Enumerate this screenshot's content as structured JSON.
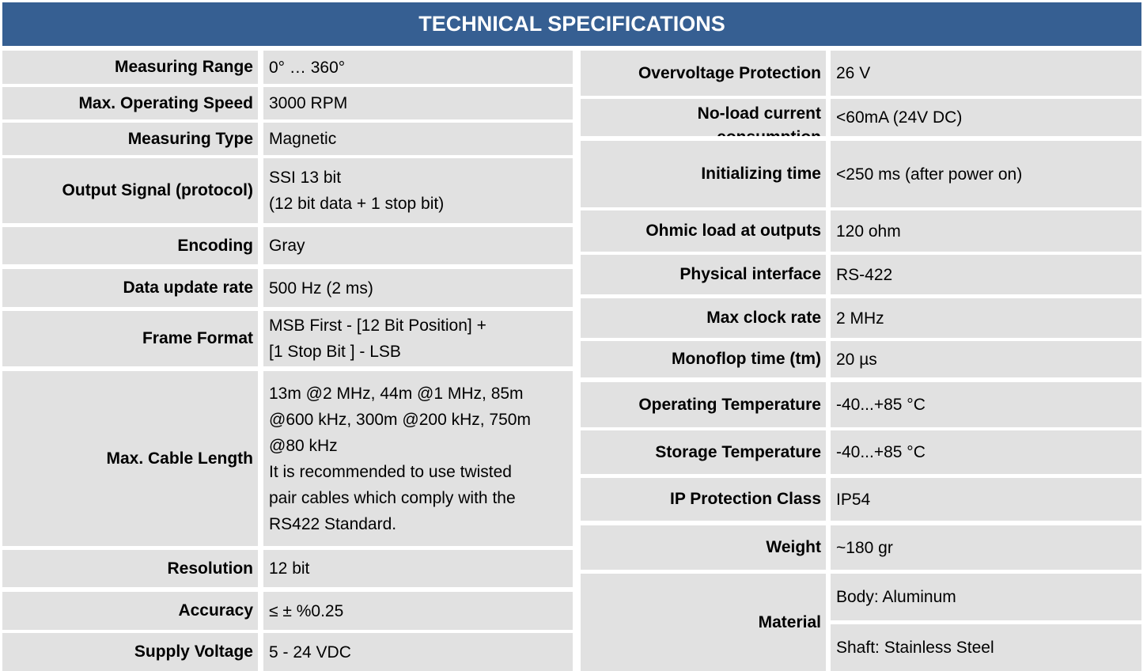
{
  "header": {
    "title": "TECHNICAL SPECIFICATIONS"
  },
  "left": [
    {
      "label": "Measuring Range",
      "value": [
        "0° … 360°"
      ]
    },
    {
      "label": "Max. Operating Speed",
      "value": [
        "3000 RPM"
      ]
    },
    {
      "label": "Measuring Type",
      "value": [
        "Magnetic"
      ]
    },
    {
      "label": "Output Signal (protocol)",
      "value": [
        "SSI 13 bit",
        "(12 bit data + 1 stop bit)"
      ]
    },
    {
      "label": "Encoding",
      "value": [
        "Gray"
      ]
    },
    {
      "label": "Data update rate",
      "value": [
        "500 Hz (2 ms)"
      ]
    },
    {
      "label": "Frame Format",
      "value": [
        "MSB First - [12 Bit Position] +",
        "[1 Stop Bit ] - LSB"
      ]
    },
    {
      "label": "Max. Cable Length",
      "value": [
        "13m @2 MHz, 44m @1 MHz, 85m",
        "@600 kHz, 300m @200 kHz, 750m",
        "@80 kHz",
        "It is recommended to use twisted",
        "pair cables which comply with the",
        "RS422 Standard."
      ]
    },
    {
      "label": "Resolution",
      "value": [
        "12 bit"
      ]
    },
    {
      "label": "Accuracy",
      "value": [
        "≤ ± %0.25"
      ]
    },
    {
      "label": "Supply Voltage",
      "value": [
        "5 - 24 VDC"
      ]
    }
  ],
  "right": [
    {
      "label": "Overvoltage Protection",
      "value": [
        "26 V"
      ]
    },
    {
      "label": "No-load current consumption",
      "value": [
        "<60mA (24V DC)"
      ]
    },
    {
      "label": "Initializing time",
      "value": [
        "<250 ms (after power on)"
      ]
    },
    {
      "label": "Ohmic load at outputs",
      "value": [
        "120 ohm"
      ]
    },
    {
      "label": "Physical interface",
      "value": [
        "RS-422"
      ]
    },
    {
      "label": "Max clock rate",
      "value": [
        "2 MHz"
      ]
    },
    {
      "label": "Monoflop time (tm)",
      "value": [
        "20 µs"
      ]
    },
    {
      "label": "Operating Temperature",
      "value": [
        "-40...+85 °C"
      ]
    },
    {
      "label": "Storage Temperature",
      "value": [
        "-40...+85 °C"
      ]
    },
    {
      "label": "IP Protection Class",
      "value": [
        "IP54"
      ]
    },
    {
      "label": "Weight",
      "value": [
        "~180 gr"
      ]
    },
    {
      "label": "Material",
      "cells": [
        "Body: Aluminum",
        "Shaft: Stainless Steel"
      ]
    }
  ]
}
